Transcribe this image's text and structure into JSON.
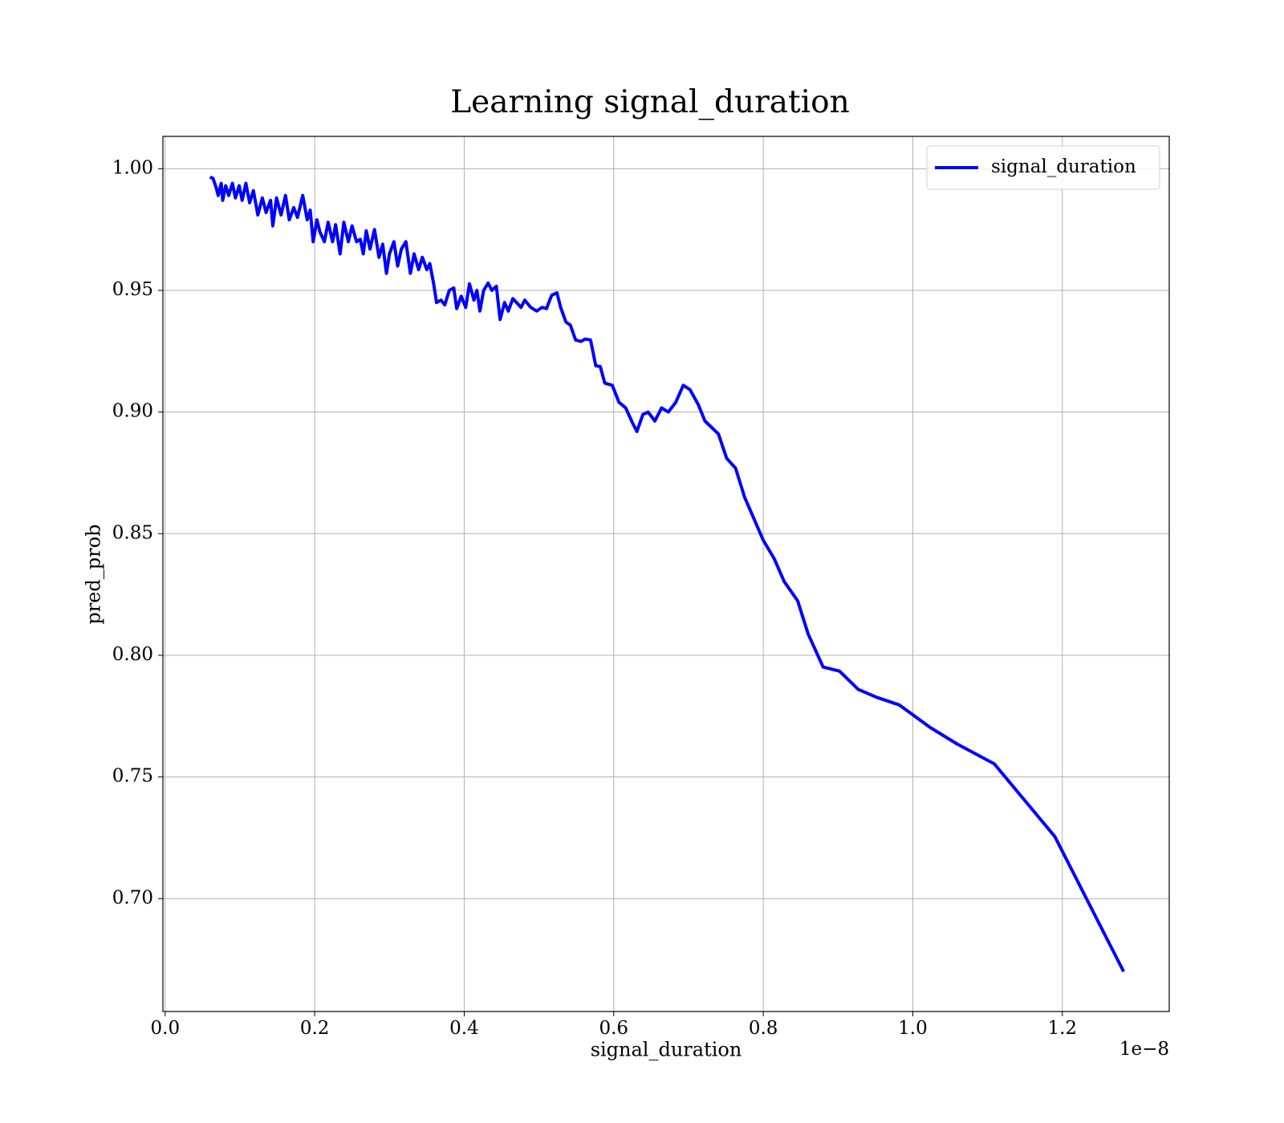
{
  "chart_data": {
    "type": "line",
    "title": "Learning signal_duration",
    "x_label": "signal_duration",
    "y_label": "pred_prob",
    "x_offset_label": "1e−8",
    "xlim": [
      -0.003,
      1.343
    ],
    "ylim": [
      0.6536,
      1.0133
    ],
    "xticks": [
      {
        "value": 0,
        "label": "0.0"
      },
      {
        "value": 0.2,
        "label": "0.2"
      },
      {
        "value": 0.4,
        "label": "0.4"
      },
      {
        "value": 0.6,
        "label": "0.6"
      },
      {
        "value": 0.8,
        "label": "0.8"
      },
      {
        "value": 1,
        "label": "1.0"
      },
      {
        "value": 1.2,
        "label": "1.2"
      }
    ],
    "yticks": [
      {
        "value": 0.7,
        "label": "0.70"
      },
      {
        "value": 0.75,
        "label": "0.75"
      },
      {
        "value": 0.8,
        "label": "0.80"
      },
      {
        "value": 0.85,
        "label": "0.85"
      },
      {
        "value": 0.9,
        "label": "0.90"
      },
      {
        "value": 0.95,
        "label": "0.95"
      },
      {
        "value": 1,
        "label": "1.00"
      }
    ],
    "grid": true,
    "legend_position": "upper right",
    "x": [
      0.06,
      0.064,
      0.068,
      0.071,
      0.075,
      0.077,
      0.081,
      0.085,
      0.09,
      0.094,
      0.099,
      0.103,
      0.108,
      0.113,
      0.118,
      0.124,
      0.13,
      0.135,
      0.141,
      0.144,
      0.149,
      0.155,
      0.161,
      0.166,
      0.172,
      0.177,
      0.184,
      0.19,
      0.194,
      0.198,
      0.203,
      0.207,
      0.213,
      0.218,
      0.224,
      0.228,
      0.234,
      0.239,
      0.245,
      0.25,
      0.256,
      0.261,
      0.265,
      0.269,
      0.274,
      0.28,
      0.286,
      0.291,
      0.296,
      0.3,
      0.306,
      0.311,
      0.316,
      0.322,
      0.328,
      0.333,
      0.339,
      0.344,
      0.35,
      0.354,
      0.359,
      0.363,
      0.369,
      0.374,
      0.38,
      0.386,
      0.39,
      0.396,
      0.402,
      0.407,
      0.413,
      0.417,
      0.421,
      0.426,
      0.432,
      0.437,
      0.443,
      0.448,
      0.454,
      0.459,
      0.465,
      0.47,
      0.476,
      0.481,
      0.489,
      0.497,
      0.504,
      0.51,
      0.517,
      0.524,
      0.529,
      0.536,
      0.542,
      0.549,
      0.556,
      0.562,
      0.569,
      0.576,
      0.582,
      0.588,
      0.598,
      0.607,
      0.616,
      0.625,
      0.631,
      0.639,
      0.646,
      0.655,
      0.664,
      0.673,
      0.683,
      0.693,
      0.702,
      0.713,
      0.722,
      0.74,
      0.751,
      0.763,
      0.775,
      0.8,
      0.815,
      0.828,
      0.846,
      0.86,
      0.88,
      0.902,
      0.927,
      0.952,
      0.982,
      1.023,
      1.059,
      1.109,
      1.19,
      1.282
    ],
    "series": [
      {
        "name": "signal_duration",
        "color": "#0000ff",
        "values": [
          0.9966,
          0.996,
          0.9925,
          0.989,
          0.994,
          0.987,
          0.993,
          0.989,
          0.994,
          0.988,
          0.993,
          0.987,
          0.994,
          0.986,
          0.991,
          0.981,
          0.988,
          0.982,
          0.987,
          0.9765,
          0.988,
          0.981,
          0.989,
          0.979,
          0.984,
          0.98,
          0.989,
          0.979,
          0.983,
          0.97,
          0.979,
          0.974,
          0.97,
          0.978,
          0.97,
          0.977,
          0.965,
          0.978,
          0.97,
          0.9765,
          0.97,
          0.971,
          0.965,
          0.9745,
          0.967,
          0.975,
          0.9636,
          0.969,
          0.957,
          0.965,
          0.97,
          0.96,
          0.967,
          0.97,
          0.957,
          0.965,
          0.9585,
          0.9636,
          0.9585,
          0.961,
          0.953,
          0.945,
          0.946,
          0.944,
          0.95,
          0.951,
          0.9425,
          0.9476,
          0.943,
          0.9527,
          0.946,
          0.95,
          0.9415,
          0.95,
          0.953,
          0.95,
          0.9517,
          0.938,
          0.945,
          0.9415,
          0.9466,
          0.945,
          0.943,
          0.946,
          0.943,
          0.9415,
          0.943,
          0.9425,
          0.948,
          0.949,
          0.943,
          0.937,
          0.9357,
          0.9296,
          0.929,
          0.93,
          0.9296,
          0.919,
          0.9187,
          0.9119,
          0.911,
          0.904,
          0.9017,
          0.8956,
          0.892,
          0.899,
          0.9,
          0.8963,
          0.9017,
          0.9,
          0.904,
          0.911,
          0.9092,
          0.9031,
          0.8963,
          0.891,
          0.881,
          0.8769,
          0.865,
          0.8473,
          0.8395,
          0.8303,
          0.8224,
          0.8088,
          0.7952,
          0.7935,
          0.786,
          0.7827,
          0.7796,
          0.7704,
          0.7636,
          0.7554,
          0.7255,
          0.67
        ]
      }
    ]
  }
}
